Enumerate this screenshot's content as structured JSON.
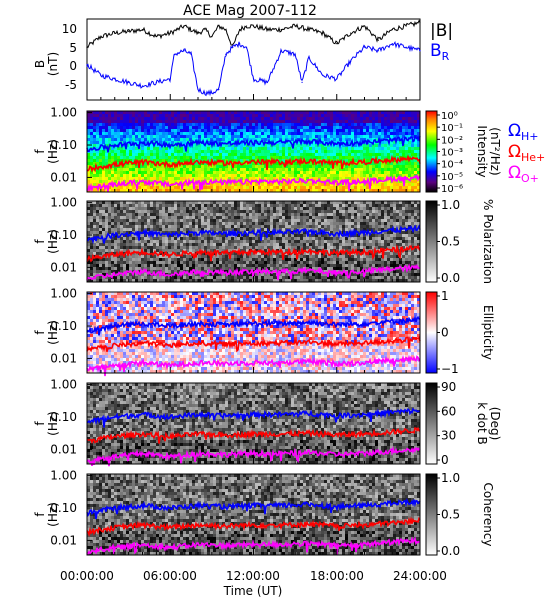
{
  "chart_data": {
    "type": "line",
    "title": "ACE Mag 2007-112",
    "xlabel": "Time (UT)",
    "x_ticks": [
      "00:00:00",
      "06:00:00",
      "12:00:00",
      "18:00:00",
      "24:00:00"
    ],
    "x_range_hours": [
      0,
      24
    ],
    "colors": {
      "total_field": "#000000",
      "radial_field": "#0000ff",
      "h_plus": "#0000ff",
      "he_plus": "#ff0000",
      "o_plus": "#ff00ff"
    },
    "field_panel": {
      "ylabel": "B",
      "yunit": "(nT)",
      "yticks": [
        "10",
        "5",
        "0",
        "-5"
      ],
      "ylim": [
        -10,
        13
      ],
      "legend": {
        "total": "|B|",
        "radial_base": "B",
        "radial_sub": "R"
      },
      "series": [
        {
          "name": "|B|",
          "x": [
            0,
            1,
            2,
            3,
            4,
            5,
            6,
            6.5,
            7,
            8,
            8.5,
            9,
            9.5,
            10,
            10.5,
            11,
            11.5,
            12,
            13,
            14,
            15,
            16,
            17,
            18,
            19,
            20,
            21,
            22,
            23,
            24
          ],
          "values": [
            5,
            8,
            9,
            9.5,
            10,
            8,
            9,
            10,
            11,
            9,
            10,
            8,
            11,
            10,
            5,
            10,
            11,
            11,
            10,
            10,
            11,
            10,
            9,
            6,
            9,
            11,
            7,
            10,
            11,
            12
          ]
        },
        {
          "name": "BR",
          "x": [
            0,
            1,
            2,
            3,
            4,
            5,
            6,
            6.3,
            7,
            7.5,
            8,
            8.5,
            9,
            9.5,
            10,
            10.5,
            11,
            11.5,
            12,
            13,
            14,
            15,
            15.5,
            16,
            17,
            18,
            19,
            20,
            21,
            22,
            23,
            24
          ],
          "values": [
            0,
            -3,
            -4,
            -5,
            -6,
            -5,
            -4,
            3,
            4,
            3,
            -7,
            -8,
            -8,
            -7,
            3,
            5,
            6,
            5,
            -4,
            -5,
            4,
            3,
            -5,
            2,
            -3,
            -4,
            1,
            5,
            4,
            6,
            5,
            4
          ]
        }
      ]
    },
    "spectrogram_panels": [
      {
        "id": "intensity",
        "ylabel": "f",
        "yunit": "(Hz)",
        "yticks": [
          "1.00",
          "0.10",
          "0.01"
        ],
        "colorbar_label": "Intensity",
        "colorbar_unit": "(nT²/Hz)",
        "colorbar_ticks": [
          "10⁰",
          "10⁻¹",
          "10⁻²",
          "10⁻³",
          "10⁻⁴",
          "10⁻⁵",
          "10⁻⁶"
        ],
        "colormap": "rainbow",
        "colorbar_range": [
          -6,
          0
        ]
      },
      {
        "id": "polarization",
        "ylabel": "f",
        "yunit": "(Hz)",
        "yticks": [
          "1.00",
          "0.10",
          "0.01"
        ],
        "colorbar_label": "% Polarization",
        "colorbar_ticks": [
          "1.0",
          "0.5",
          "0.0"
        ],
        "colormap": "gray",
        "colorbar_range": [
          0,
          1
        ]
      },
      {
        "id": "ellipticity",
        "ylabel": "f",
        "yunit": "(Hz)",
        "yticks": [
          "1.00",
          "0.10",
          "0.01"
        ],
        "colorbar_label": "Ellipticity",
        "colorbar_ticks": [
          "1",
          "0",
          "−1"
        ],
        "colormap": "bwr",
        "colorbar_range": [
          -1,
          1
        ]
      },
      {
        "id": "kdotb",
        "ylabel": "f",
        "yunit": "(Hz)",
        "yticks": [
          "1.00",
          "0.10",
          "0.01"
        ],
        "colorbar_label": "k dot B",
        "colorbar_unit": "(Deg)",
        "colorbar_ticks": [
          "90",
          "60",
          "30",
          "0"
        ],
        "colormap": "gray",
        "colorbar_range": [
          0,
          90
        ]
      },
      {
        "id": "coherency",
        "ylabel": "f",
        "yunit": "(Hz)",
        "yticks": [
          "1.00",
          "0.10",
          "0.01"
        ],
        "colorbar_label": "Coherency",
        "colorbar_ticks": [
          "1.0",
          "0.5",
          "0.0"
        ],
        "colormap": "gray",
        "colorbar_range": [
          0,
          1
        ]
      }
    ],
    "gyrofrequency_legend": [
      {
        "base": "Ω",
        "sub": "H+",
        "color": "#0000ff"
      },
      {
        "base": "Ω",
        "sub": "He+",
        "color": "#ff0000"
      },
      {
        "base": "Ω",
        "sub": "O+",
        "color": "#ff00ff"
      }
    ],
    "gyrofrequency_hz": {
      "x": [
        0,
        2,
        4,
        6,
        8,
        10,
        12,
        14,
        16,
        18,
        20,
        22,
        24
      ],
      "h_plus": [
        0.07,
        0.1,
        0.12,
        0.1,
        0.12,
        0.11,
        0.12,
        0.12,
        0.13,
        0.11,
        0.12,
        0.14,
        0.16
      ],
      "he_plus": [
        0.018,
        0.025,
        0.03,
        0.025,
        0.03,
        0.028,
        0.03,
        0.03,
        0.032,
        0.028,
        0.03,
        0.035,
        0.04
      ],
      "o_plus": [
        0.0045,
        0.006,
        0.0075,
        0.006,
        0.0075,
        0.007,
        0.0075,
        0.0075,
        0.008,
        0.007,
        0.0075,
        0.009,
        0.01
      ]
    }
  }
}
